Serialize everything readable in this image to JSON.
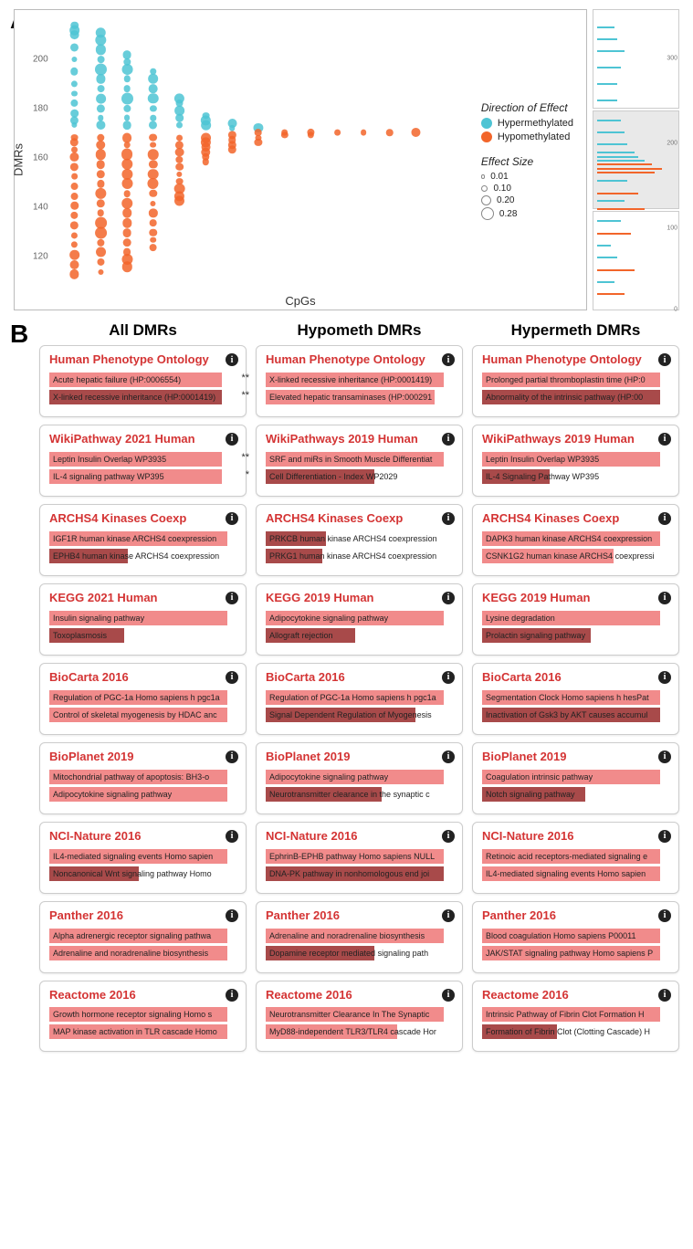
{
  "panelA": {
    "label": "A",
    "ylabel": "DMRs",
    "xlabel": "CpGs",
    "yticks": [
      120,
      140,
      160,
      180,
      200
    ],
    "ylim": [
      108,
      215
    ],
    "legend": {
      "direction_title": "Direction of Effect",
      "hyper_label": "Hypermethylated",
      "hypo_label": "Hypomethylated",
      "effect_title": "Effect Size",
      "effect_sizes": [
        0.01,
        0.1,
        0.2,
        0.28
      ]
    },
    "colors": {
      "hyper": "#4ec4d4",
      "hypo": "#f2652a",
      "grid": "#e6e6e6",
      "bg": "#ffffff"
    },
    "columns": [
      {
        "x": 0.05,
        "hyper": [
          173,
          175,
          178,
          182,
          186,
          190,
          195,
          200,
          205,
          210,
          212,
          214
        ],
        "hypo": [
          168,
          166,
          163,
          160,
          156,
          152,
          148,
          144,
          140,
          136,
          132,
          128,
          124,
          120,
          116,
          112
        ],
        "spread": 0.08
      },
      {
        "x": 0.12,
        "hyper": [
          173,
          176,
          180,
          184,
          188,
          192,
          196,
          200,
          204,
          208,
          211
        ],
        "hypo": [
          168,
          165,
          161,
          157,
          153,
          149,
          145,
          141,
          137,
          133,
          129,
          125,
          121,
          117,
          113
        ],
        "spread": 0.12
      },
      {
        "x": 0.19,
        "hyper": [
          173,
          176,
          180,
          184,
          188,
          192,
          196,
          199,
          202
        ],
        "hypo": [
          168,
          165,
          161,
          157,
          153,
          149,
          145,
          141,
          137,
          133,
          129,
          125,
          121,
          118,
          115
        ],
        "spread": 0.12
      },
      {
        "x": 0.26,
        "hyper": [
          173,
          176,
          180,
          184,
          188,
          192,
          195
        ],
        "hypo": [
          168,
          165,
          161,
          157,
          153,
          149,
          145,
          141,
          137,
          133,
          129,
          126,
          123
        ],
        "spread": 0.11
      },
      {
        "x": 0.33,
        "hyper": [
          173,
          176,
          179,
          182,
          184
        ],
        "hypo": [
          168,
          165,
          162,
          159,
          156,
          153,
          150,
          147,
          144,
          142
        ],
        "spread": 0.1
      },
      {
        "x": 0.4,
        "hyper": [
          173,
          175,
          177
        ],
        "hypo": [
          168,
          166,
          164,
          162,
          160,
          158
        ],
        "spread": 0.09
      },
      {
        "x": 0.47,
        "hyper": [
          172,
          174
        ],
        "hypo": [
          169,
          167,
          165,
          163
        ],
        "spread": 0.08
      },
      {
        "x": 0.54,
        "hyper": [
          172
        ],
        "hypo": [
          170,
          168,
          166
        ],
        "spread": 0.07
      },
      {
        "x": 0.61,
        "hyper": [],
        "hypo": [
          170,
          169
        ],
        "spread": 0.07
      },
      {
        "x": 0.68,
        "hyper": [],
        "hypo": [
          170,
          169
        ],
        "spread": 0.07
      },
      {
        "x": 0.75,
        "hyper": [],
        "hypo": [
          170
        ],
        "spread": 0.07
      },
      {
        "x": 0.82,
        "hyper": [],
        "hypo": [
          170
        ],
        "spread": 0.07
      },
      {
        "x": 0.89,
        "hyper": [],
        "hypo": [
          170
        ],
        "spread": 0.07
      },
      {
        "x": 0.96,
        "hyper": [],
        "hypo": [
          170
        ],
        "spread": 0.07
      }
    ],
    "mini_yticks": [
      0,
      100,
      200,
      300
    ],
    "mini_ylim": [
      0,
      360
    ],
    "mini_bars": [
      {
        "y": 20,
        "direction": "hypo",
        "w": 0.4
      },
      {
        "y": 35,
        "direction": "hyper",
        "w": 0.25
      },
      {
        "y": 50,
        "direction": "hypo",
        "w": 0.55
      },
      {
        "y": 65,
        "direction": "hyper",
        "w": 0.3
      },
      {
        "y": 80,
        "direction": "hyper",
        "w": 0.2
      },
      {
        "y": 95,
        "direction": "hypo",
        "w": 0.5
      },
      {
        "y": 110,
        "direction": "hyper",
        "w": 0.35
      },
      {
        "y": 120,
        "direction": "hypo",
        "w": 0.7
      },
      {
        "y": 130,
        "direction": "hyper",
        "w": 0.4
      },
      {
        "y": 140,
        "direction": "hypo",
        "w": 0.6
      },
      {
        "y": 155,
        "direction": "hyper",
        "w": 0.45
      },
      {
        "y": 165,
        "direction": "hypo",
        "w": 0.85
      },
      {
        "y": 170,
        "direction": "hypo",
        "w": 0.95
      },
      {
        "y": 175,
        "direction": "hypo",
        "w": 0.8
      },
      {
        "y": 180,
        "direction": "hyper",
        "w": 0.7
      },
      {
        "y": 185,
        "direction": "hyper",
        "w": 0.6
      },
      {
        "y": 190,
        "direction": "hyper",
        "w": 0.55
      },
      {
        "y": 200,
        "direction": "hyper",
        "w": 0.45
      },
      {
        "y": 215,
        "direction": "hyper",
        "w": 0.4
      },
      {
        "y": 230,
        "direction": "hyper",
        "w": 0.35
      },
      {
        "y": 250,
        "direction": "hyper",
        "w": 0.3
      },
      {
        "y": 270,
        "direction": "hyper",
        "w": 0.3
      },
      {
        "y": 290,
        "direction": "hyper",
        "w": 0.35
      },
      {
        "y": 310,
        "direction": "hyper",
        "w": 0.4
      },
      {
        "y": 325,
        "direction": "hyper",
        "w": 0.3
      },
      {
        "y": 340,
        "direction": "hyper",
        "w": 0.25
      }
    ]
  },
  "panelB": {
    "label": "B",
    "columns": [
      "All DMRs",
      "Hypometh DMRs",
      "Hypermeth DMRs"
    ],
    "bar_colors": {
      "light": "#f18b8b",
      "dark": "#a84a4a"
    },
    "title_color": "#d43434",
    "cards": [
      {
        "col": 0,
        "title": "Human Phenotype Ontology",
        "terms": [
          {
            "label": "Acute hepatic failure (HP:0006554)",
            "color": "light",
            "w": 0.92,
            "sig": "**"
          },
          {
            "label": "X-linked recessive inheritance (HP:0001419)",
            "color": "dark",
            "w": 0.92,
            "sig": "**"
          }
        ]
      },
      {
        "col": 1,
        "title": "Human Phenotype Ontology",
        "terms": [
          {
            "label": "X-linked recessive inheritance (HP:0001419)",
            "color": "light",
            "w": 0.95
          },
          {
            "label": "Elevated hepatic transaminases (HP:000291",
            "color": "light",
            "w": 0.9
          }
        ]
      },
      {
        "col": 2,
        "title": "Human Phenotype Ontology",
        "terms": [
          {
            "label": "Prolonged partial thromboplastin time (HP:0",
            "color": "light",
            "w": 0.95
          },
          {
            "label": "Abnormality of the intrinsic pathway (HP:00",
            "color": "dark",
            "w": 0.95
          }
        ]
      },
      {
        "col": 0,
        "title": "WikiPathway 2021 Human",
        "terms": [
          {
            "label": "Leptin Insulin Overlap WP3935",
            "color": "light",
            "w": 0.92,
            "sig": "**"
          },
          {
            "label": "IL-4 signaling pathway WP395",
            "color": "light",
            "w": 0.92,
            "sig": "*"
          }
        ]
      },
      {
        "col": 1,
        "title": "WikiPathways 2019 Human",
        "terms": [
          {
            "label": "SRF and miRs in Smooth Muscle Differentiat",
            "color": "light",
            "w": 0.95
          },
          {
            "label": "Cell Differentiation - Index WP2029",
            "color": "dark",
            "w": 0.58
          }
        ]
      },
      {
        "col": 2,
        "title": "WikiPathways 2019 Human",
        "terms": [
          {
            "label": "Leptin Insulin Overlap WP3935",
            "color": "light",
            "w": 0.95
          },
          {
            "label": "IL-4 Signaling Pathway WP395",
            "color": "dark",
            "w": 0.36
          }
        ]
      },
      {
        "col": 0,
        "title": "ARCHS4 Kinases Coexp",
        "terms": [
          {
            "label": "IGF1R human kinase ARCHS4 coexpression",
            "color": "light",
            "w": 0.95
          },
          {
            "label": "EPHB4 human kinase ARCHS4 coexpression",
            "color": "dark",
            "w": 0.42
          }
        ]
      },
      {
        "col": 1,
        "title": "ARCHS4 Kinases Coexp",
        "terms": [
          {
            "label": "PRKCB human kinase ARCHS4 coexpression",
            "color": "dark",
            "w": 0.32
          },
          {
            "label": "PRKG1 human kinase ARCHS4 coexpression",
            "color": "dark",
            "w": 0.3
          }
        ]
      },
      {
        "col": 2,
        "title": "ARCHS4 Kinases Coexp",
        "terms": [
          {
            "label": "DAPK3 human kinase ARCHS4 coexpression",
            "color": "light",
            "w": 0.95
          },
          {
            "label": "CSNK1G2 human kinase ARCHS4 coexpressi",
            "color": "light",
            "w": 0.7
          }
        ]
      },
      {
        "col": 0,
        "title": "KEGG 2021 Human",
        "terms": [
          {
            "label": "Insulin signaling pathway",
            "color": "light",
            "w": 0.95
          },
          {
            "label": "Toxoplasmosis",
            "color": "dark",
            "w": 0.4
          }
        ]
      },
      {
        "col": 1,
        "title": "KEGG 2019 Human",
        "terms": [
          {
            "label": "Adipocytokine signaling pathway",
            "color": "light",
            "w": 0.95
          },
          {
            "label": "Allograft rejection",
            "color": "dark",
            "w": 0.48
          }
        ]
      },
      {
        "col": 2,
        "title": "KEGG 2019 Human",
        "terms": [
          {
            "label": "Lysine degradation",
            "color": "light",
            "w": 0.95
          },
          {
            "label": "Prolactin signaling pathway",
            "color": "dark",
            "w": 0.58
          }
        ]
      },
      {
        "col": 0,
        "title": "BioCarta 2016",
        "terms": [
          {
            "label": "Regulation of PGC-1a Homo sapiens h pgc1a",
            "color": "light",
            "w": 0.95
          },
          {
            "label": "Control of skeletal myogenesis by HDAC anc",
            "color": "light",
            "w": 0.95
          }
        ]
      },
      {
        "col": 1,
        "title": "BioCarta 2016",
        "terms": [
          {
            "label": "Regulation of PGC-1a Homo sapiens h pgc1a",
            "color": "light",
            "w": 0.95
          },
          {
            "label": "Signal Dependent Regulation of Myogenesis",
            "color": "dark",
            "w": 0.8
          }
        ]
      },
      {
        "col": 2,
        "title": "BioCarta 2016",
        "terms": [
          {
            "label": "Segmentation Clock Homo sapiens h hesPat",
            "color": "light",
            "w": 0.95
          },
          {
            "label": "Inactivation of Gsk3 by AKT causes accumul",
            "color": "dark",
            "w": 0.95
          }
        ]
      },
      {
        "col": 0,
        "title": "BioPlanet 2019",
        "terms": [
          {
            "label": "Mitochondrial pathway of apoptosis: BH3-o",
            "color": "light",
            "w": 0.95
          },
          {
            "label": "Adipocytokine signaling pathway",
            "color": "light",
            "w": 0.95
          }
        ]
      },
      {
        "col": 1,
        "title": "BioPlanet 2019",
        "terms": [
          {
            "label": "Adipocytokine signaling pathway",
            "color": "light",
            "w": 0.95
          },
          {
            "label": "Neurotransmitter clearance in the synaptic c",
            "color": "dark",
            "w": 0.62
          }
        ]
      },
      {
        "col": 2,
        "title": "BioPlanet 2019",
        "terms": [
          {
            "label": "Coagulation intrinsic pathway",
            "color": "light",
            "w": 0.95
          },
          {
            "label": "Notch signaling pathway",
            "color": "dark",
            "w": 0.55
          }
        ]
      },
      {
        "col": 0,
        "title": "NCI-Nature 2016",
        "terms": [
          {
            "label": "IL4-mediated signaling events Homo sapien",
            "color": "light",
            "w": 0.95
          },
          {
            "label": "Noncanonical Wnt signaling pathway Homo",
            "color": "dark",
            "w": 0.48
          }
        ]
      },
      {
        "col": 1,
        "title": "NCI-Nature 2016",
        "terms": [
          {
            "label": "EphrinB-EPHB pathway Homo sapiens NULL",
            "color": "light",
            "w": 0.95
          },
          {
            "label": "DNA-PK pathway in nonhomologous end joi",
            "color": "dark",
            "w": 0.95
          }
        ]
      },
      {
        "col": 2,
        "title": "NCI-Nature 2016",
        "terms": [
          {
            "label": "Retinoic acid receptors-mediated signaling e",
            "color": "light",
            "w": 0.95
          },
          {
            "label": "IL4-mediated signaling events Homo sapien",
            "color": "light",
            "w": 0.95
          }
        ]
      },
      {
        "col": 0,
        "title": "Panther 2016",
        "terms": [
          {
            "label": "Alpha adrenergic receptor signaling pathwa",
            "color": "light",
            "w": 0.95
          },
          {
            "label": "Adrenaline and noradrenaline biosynthesis",
            "color": "light",
            "w": 0.95
          }
        ]
      },
      {
        "col": 1,
        "title": "Panther 2016",
        "terms": [
          {
            "label": "Adrenaline and noradrenaline biosynthesis",
            "color": "light",
            "w": 0.95
          },
          {
            "label": "Dopamine receptor mediated signaling path",
            "color": "dark",
            "w": 0.58
          }
        ]
      },
      {
        "col": 2,
        "title": "Panther 2016",
        "terms": [
          {
            "label": "Blood coagulation Homo sapiens P00011",
            "color": "light",
            "w": 0.95
          },
          {
            "label": "JAK/STAT signaling pathway Homo sapiens P",
            "color": "light",
            "w": 0.95
          }
        ]
      },
      {
        "col": 0,
        "title": "Reactome 2016",
        "terms": [
          {
            "label": "Growth hormone receptor signaling Homo s",
            "color": "light",
            "w": 0.95
          },
          {
            "label": "MAP kinase activation in TLR cascade Homo",
            "color": "light",
            "w": 0.95
          }
        ]
      },
      {
        "col": 1,
        "title": "Reactome 2016",
        "terms": [
          {
            "label": "Neurotransmitter Clearance In The Synaptic",
            "color": "light",
            "w": 0.95
          },
          {
            "label": "MyD88-independent TLR3/TLR4 cascade Hor",
            "color": "light",
            "w": 0.7
          }
        ]
      },
      {
        "col": 2,
        "title": "Reactome 2016",
        "terms": [
          {
            "label": "Intrinsic Pathway of Fibrin Clot Formation H",
            "color": "light",
            "w": 0.95
          },
          {
            "label": "Formation of Fibrin Clot (Clotting Cascade) H",
            "color": "dark",
            "w": 0.4
          }
        ]
      }
    ]
  }
}
